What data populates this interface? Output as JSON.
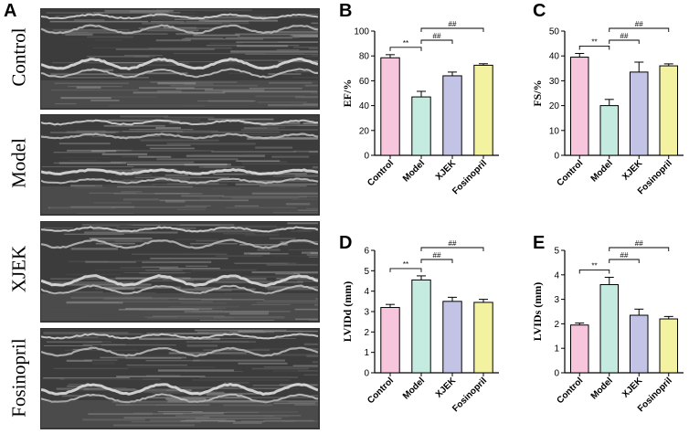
{
  "panels": {
    "A": "A",
    "B": "B",
    "C": "C",
    "D": "D",
    "E": "E"
  },
  "echo_labels": [
    "Control",
    "Model",
    "XJEK",
    "Fosinopril"
  ],
  "colors": {
    "Control": "#f7c6dc",
    "Model": "#c5ebe1",
    "XJEK": "#c3c3e6",
    "Fosinopril": "#f2f2a0"
  },
  "chart_data": [
    {
      "id": "B",
      "type": "bar",
      "categories": [
        "Control",
        "Model",
        "XJEK",
        "Fosinopril"
      ],
      "values": [
        78.5,
        47,
        64,
        72.5
      ],
      "errors": [
        2.5,
        4.5,
        3,
        1.2
      ],
      "ylabel": "EF/%",
      "ylim": [
        0,
        100
      ],
      "yticks": [
        0,
        20,
        40,
        60,
        80,
        100
      ],
      "significance": [
        {
          "from": 0,
          "to": 1,
          "label": "**"
        },
        {
          "from": 1,
          "to": 2,
          "label": "##"
        },
        {
          "from": 1,
          "to": 3,
          "label": "##"
        }
      ]
    },
    {
      "id": "C",
      "type": "bar",
      "categories": [
        "Control",
        "Model",
        "XJEK",
        "Fosinopril"
      ],
      "values": [
        39.5,
        20,
        33.5,
        36
      ],
      "errors": [
        1.5,
        2.5,
        4,
        0.8
      ],
      "ylabel": "FS/%",
      "ylim": [
        0,
        50
      ],
      "yticks": [
        0,
        10,
        20,
        30,
        40,
        50
      ],
      "significance": [
        {
          "from": 0,
          "to": 1,
          "label": "**"
        },
        {
          "from": 1,
          "to": 2,
          "label": "##"
        },
        {
          "from": 1,
          "to": 3,
          "label": "##"
        }
      ]
    },
    {
      "id": "D",
      "type": "bar",
      "categories": [
        "Control",
        "Model",
        "XJEK",
        "Fosinopril"
      ],
      "values": [
        3.2,
        4.55,
        3.5,
        3.45
      ],
      "errors": [
        0.15,
        0.2,
        0.2,
        0.15
      ],
      "ylabel": "LVIDd (mm)",
      "ylim": [
        0,
        6
      ],
      "yticks": [
        0,
        1,
        2,
        3,
        4,
        5,
        6
      ],
      "significance": [
        {
          "from": 0,
          "to": 1,
          "label": "**"
        },
        {
          "from": 1,
          "to": 2,
          "label": "##"
        },
        {
          "from": 1,
          "to": 3,
          "label": "##"
        }
      ]
    },
    {
      "id": "E",
      "type": "bar",
      "categories": [
        "Control",
        "Model",
        "XJEK",
        "Fosinopril"
      ],
      "values": [
        1.95,
        3.6,
        2.35,
        2.2
      ],
      "errors": [
        0.08,
        0.3,
        0.25,
        0.1
      ],
      "ylabel": "LVIDs (mm)",
      "ylim": [
        0,
        5
      ],
      "yticks": [
        0,
        1,
        2,
        3,
        4,
        5
      ],
      "significance": [
        {
          "from": 0,
          "to": 1,
          "label": "**"
        },
        {
          "from": 1,
          "to": 2,
          "label": "##"
        },
        {
          "from": 1,
          "to": 3,
          "label": "##"
        }
      ]
    }
  ]
}
